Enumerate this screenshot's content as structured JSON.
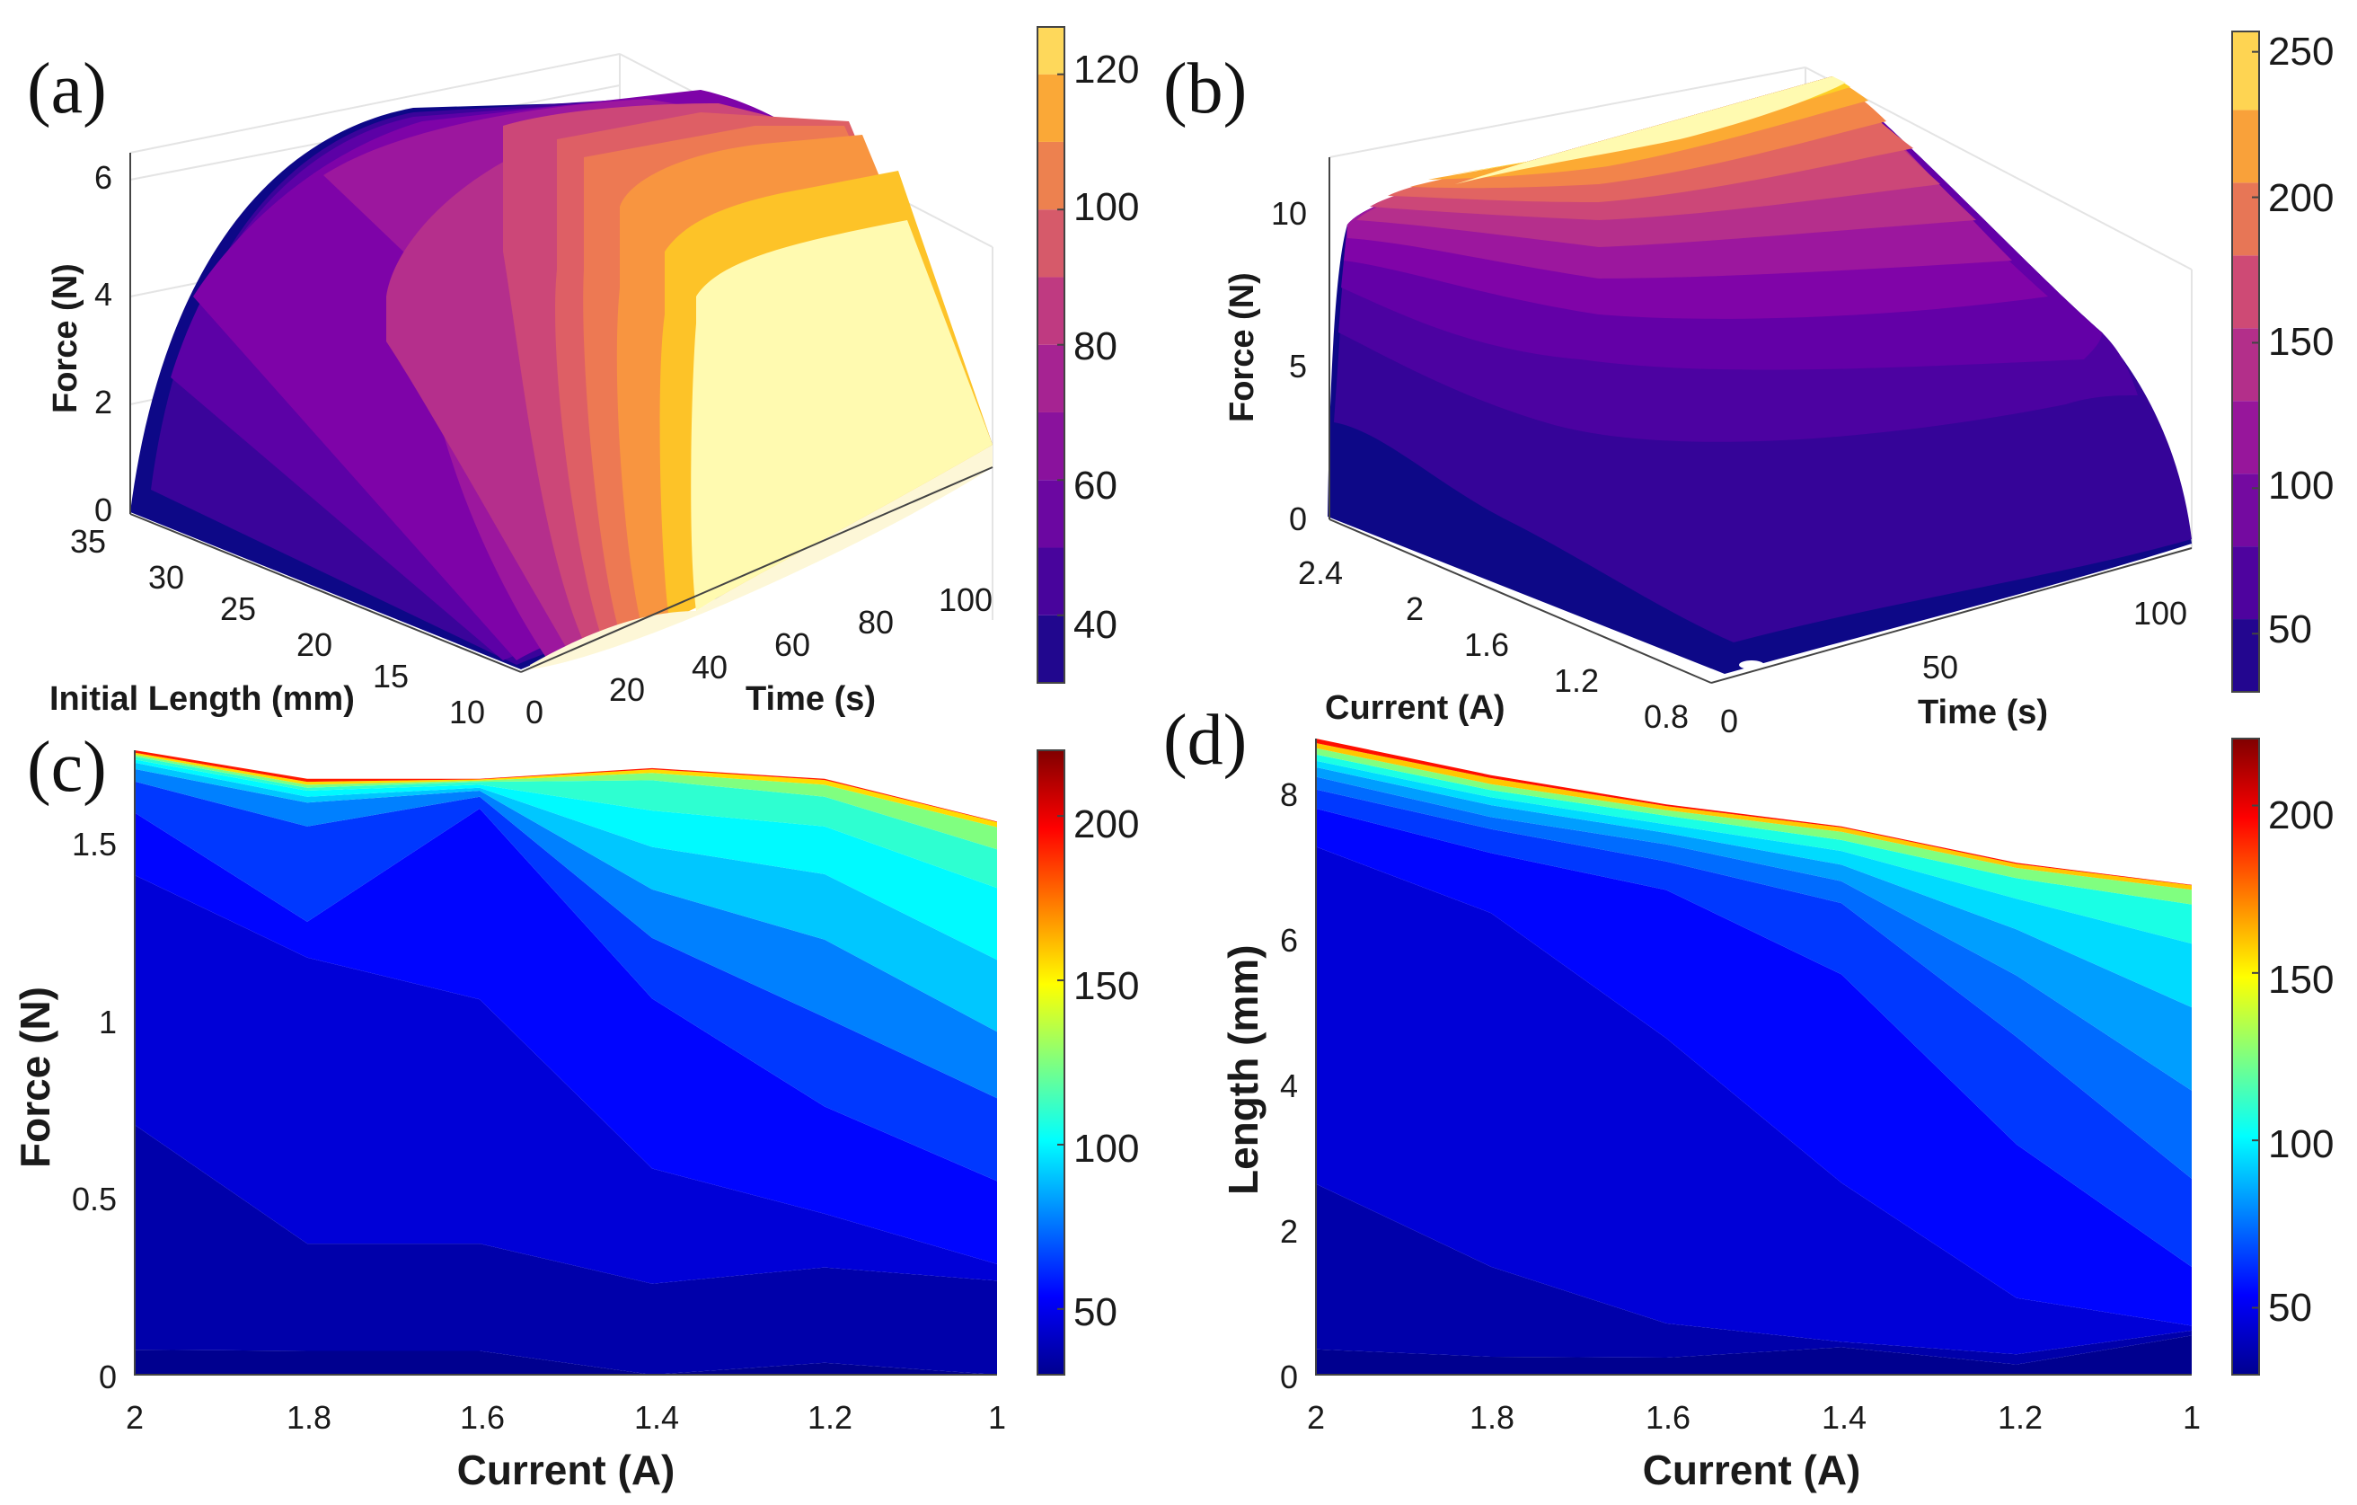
{
  "panels": {
    "a": {
      "label": "(a)"
    },
    "b": {
      "label": "(b)"
    },
    "c": {
      "label": "(c)"
    },
    "d": {
      "label": "(d)"
    }
  },
  "chart_data": [
    {
      "panel": "a",
      "type": "surface3d-contour",
      "zlabel": "Force (N)",
      "xlabel": "Initial Length (mm)",
      "ylabel": "Time (s)",
      "zticks": [
        "0",
        "2",
        "4",
        "6"
      ],
      "xticks": [
        "35",
        "30",
        "25",
        "20",
        "15",
        "10"
      ],
      "yticks": [
        "0",
        "20",
        "40",
        "60",
        "80",
        "100"
      ],
      "colorbar": {
        "ticks": [
          "40",
          "60",
          "80",
          "100",
          "120"
        ],
        "range": [
          30,
          127
        ],
        "colormap": "plasma-like"
      },
      "levels": [
        30,
        40,
        50,
        60,
        70,
        80,
        90,
        100,
        110,
        120
      ]
    },
    {
      "panel": "b",
      "type": "surface3d-contour",
      "zlabel": "Force (N)",
      "xlabel": "Current (A)",
      "ylabel": "Time (s)",
      "zticks": [
        "0",
        "5",
        "10"
      ],
      "xticks": [
        "2.4",
        "2",
        "1.6",
        "1.2",
        "0.8"
      ],
      "yticks": [
        "0",
        "50",
        "100"
      ],
      "colorbar": {
        "ticks": [
          "50",
          "100",
          "150",
          "200",
          "250"
        ],
        "range": [
          30,
          257
        ],
        "colormap": "plasma-like"
      },
      "levels": [
        30,
        55,
        80,
        105,
        130,
        155,
        180,
        205,
        230
      ]
    },
    {
      "panel": "c",
      "type": "filled-contour",
      "xlabel": "Current (A)",
      "ylabel": "Force (N)",
      "xticks": [
        "2",
        "1.8",
        "1.6",
        "1.4",
        "1.2",
        "1"
      ],
      "yticks": [
        "0",
        "0.5",
        "1",
        "1.5"
      ],
      "x": [
        2,
        1.8,
        1.6,
        1.4,
        1.2,
        1
      ],
      "ylim": [
        0,
        1.75
      ],
      "upper_boundary": [
        1.75,
        1.67,
        1.67,
        1.7,
        1.67,
        1.55
      ],
      "colorbar": {
        "ticks": [
          "50",
          "100",
          "150",
          "200"
        ],
        "range": [
          30,
          220
        ],
        "colormap": "jet"
      }
    },
    {
      "panel": "d",
      "type": "filled-contour",
      "xlabel": "Current (A)",
      "ylabel": "Length (mm)",
      "xticks": [
        "2",
        "1.8",
        "1.6",
        "1.4",
        "1.2",
        "1"
      ],
      "yticks": [
        "0",
        "2",
        "4",
        "6",
        "8"
      ],
      "x": [
        2,
        1.8,
        1.6,
        1.4,
        1.2,
        1
      ],
      "ylim": [
        0,
        8.7
      ],
      "upper_boundary": [
        8.7,
        8.2,
        7.8,
        7.5,
        7.0,
        6.7
      ],
      "colorbar": {
        "ticks": [
          "50",
          "100",
          "150",
          "200"
        ],
        "range": [
          30,
          220
        ],
        "colormap": "jet"
      }
    }
  ]
}
